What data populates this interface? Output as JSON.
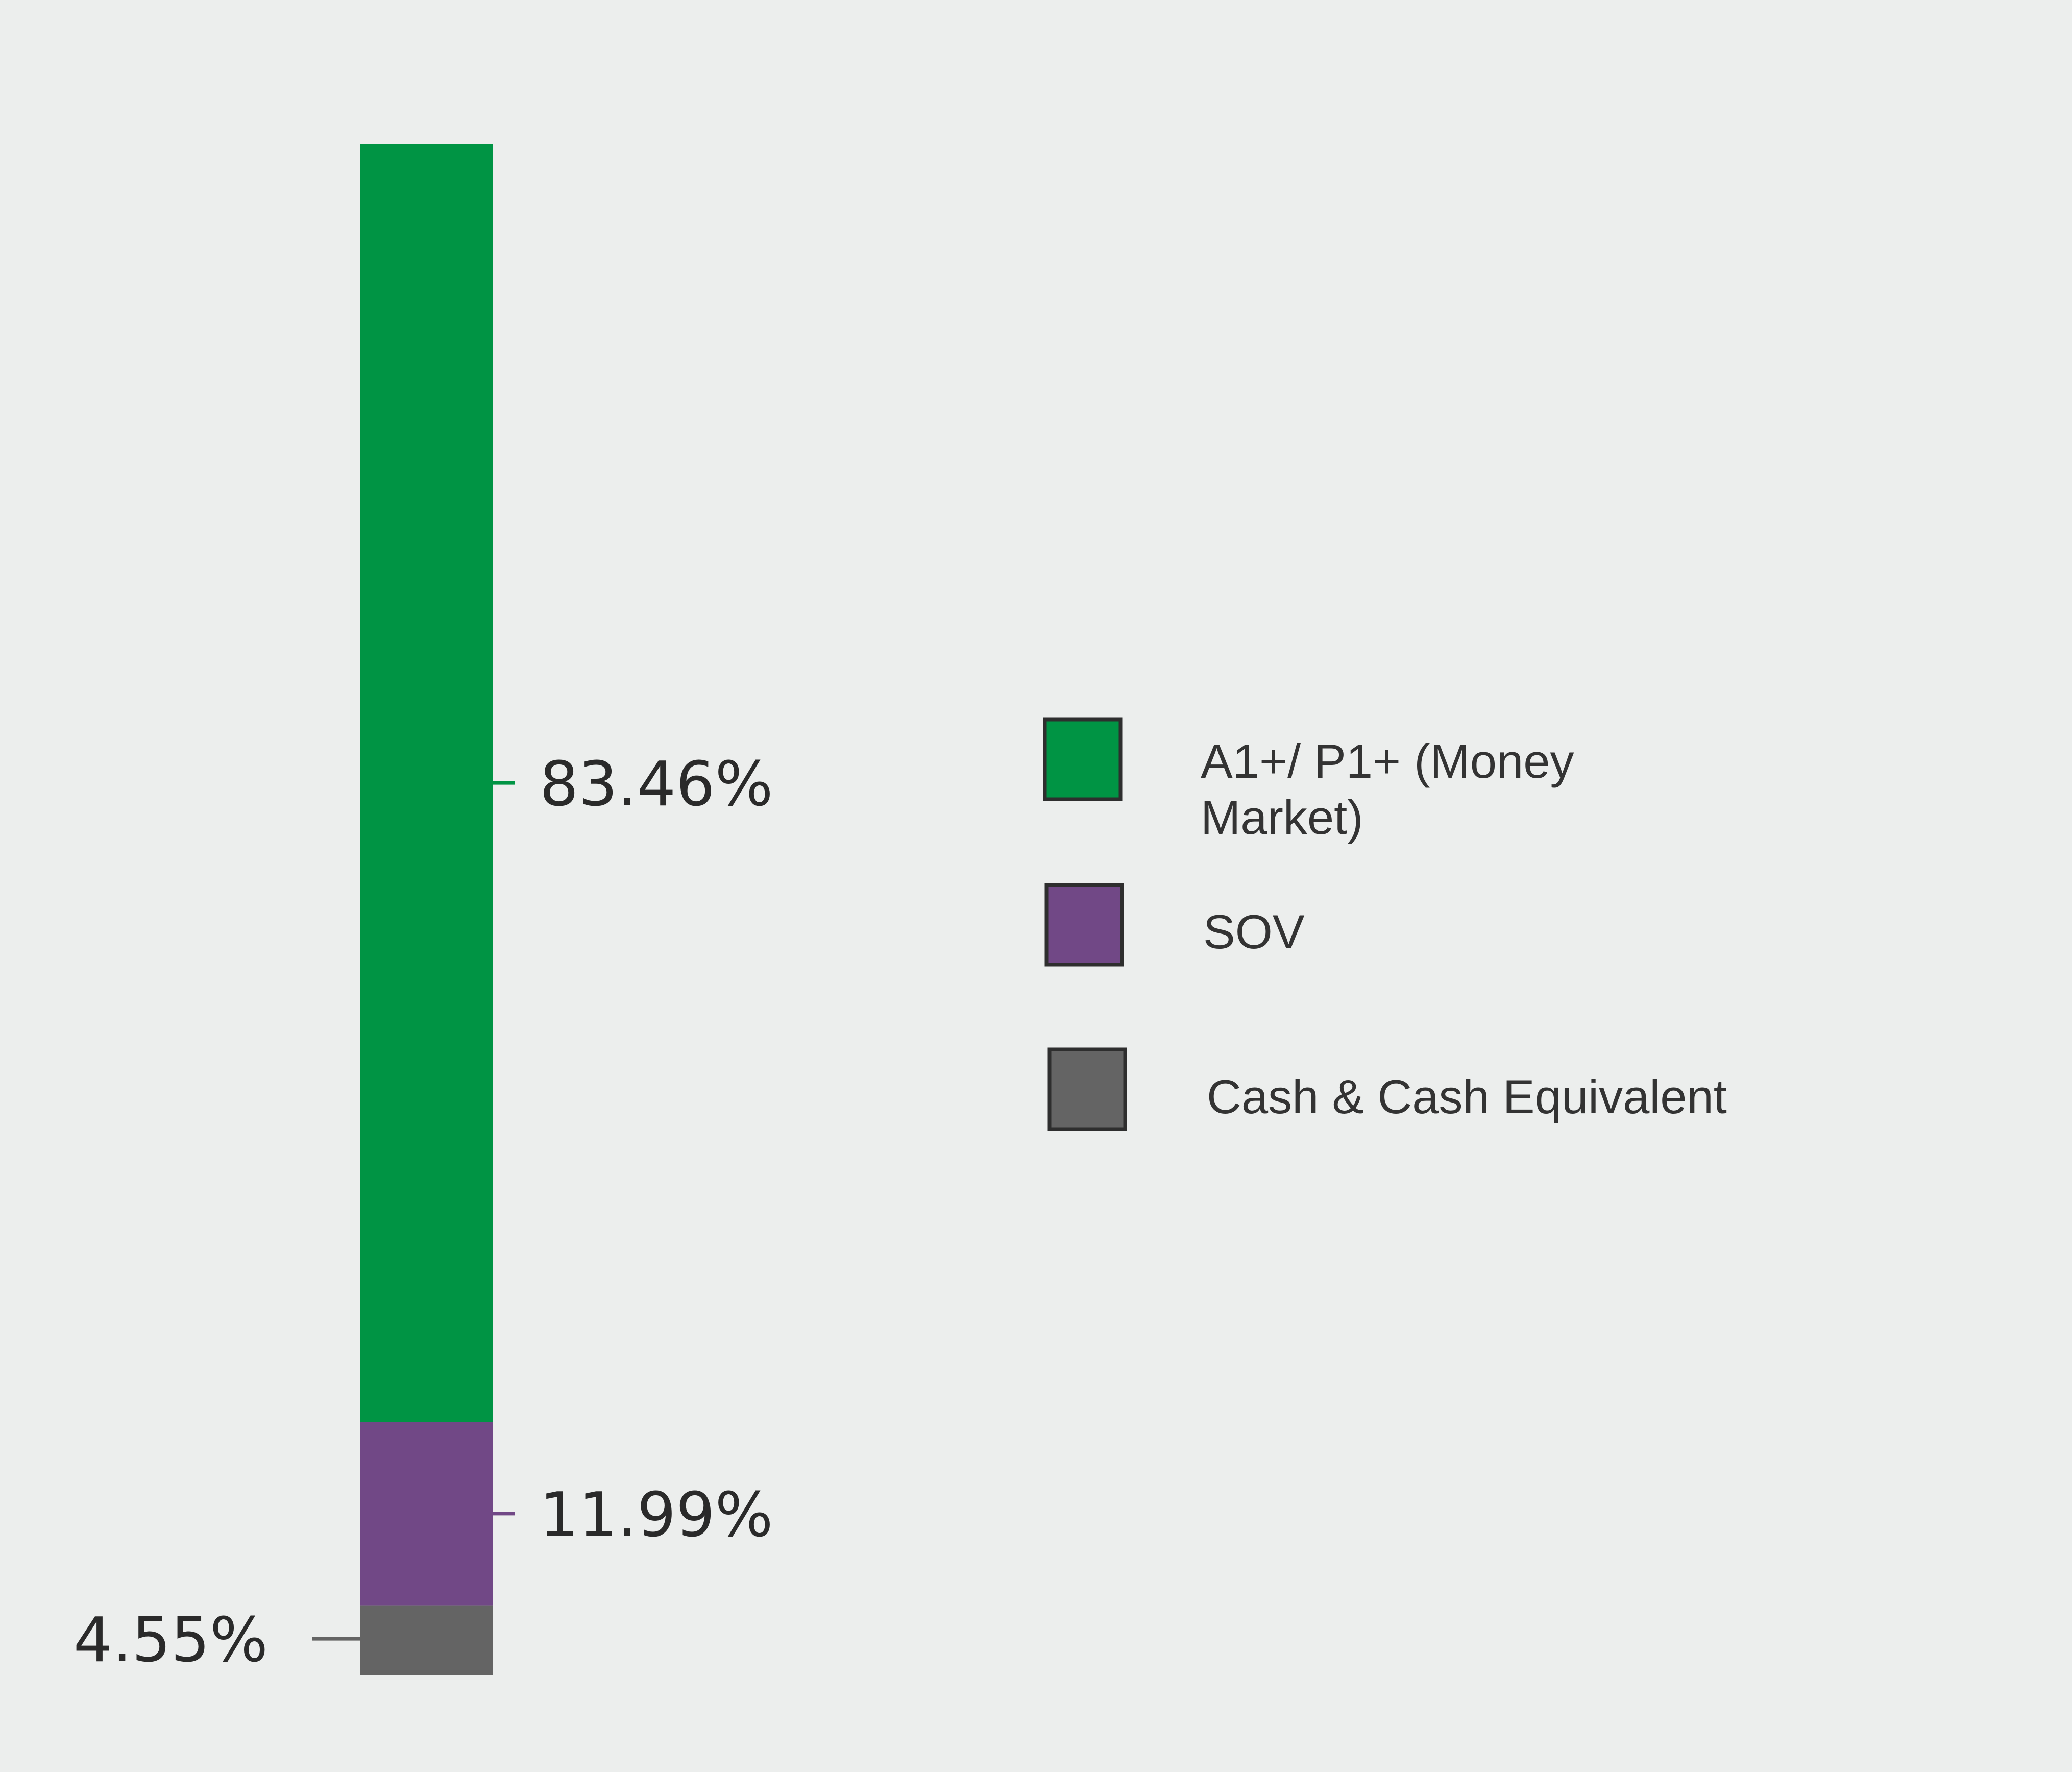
{
  "chart_data": {
    "type": "bar",
    "stacked": true,
    "title": "",
    "xlabel": "",
    "ylabel": "",
    "ylim": [
      0,
      100
    ],
    "grid": false,
    "legend_position": "right",
    "series": [
      {
        "name": "A1+/ P1+ (Money Market)",
        "legend_lines": [
          "A1+/ P1+ (Money",
          "Market)"
        ],
        "value": 83.46,
        "label": "83.46%",
        "color": "#009444"
      },
      {
        "name": "SOV",
        "legend_lines": [
          "SOV"
        ],
        "value": 11.99,
        "label": "11.99%",
        "color": "#714886"
      },
      {
        "name": "Cash & Cash Equivalent",
        "legend_lines": [
          "Cash & Cash Equivalent"
        ],
        "value": 4.55,
        "label": "4.55%",
        "color": "#646464"
      }
    ]
  }
}
